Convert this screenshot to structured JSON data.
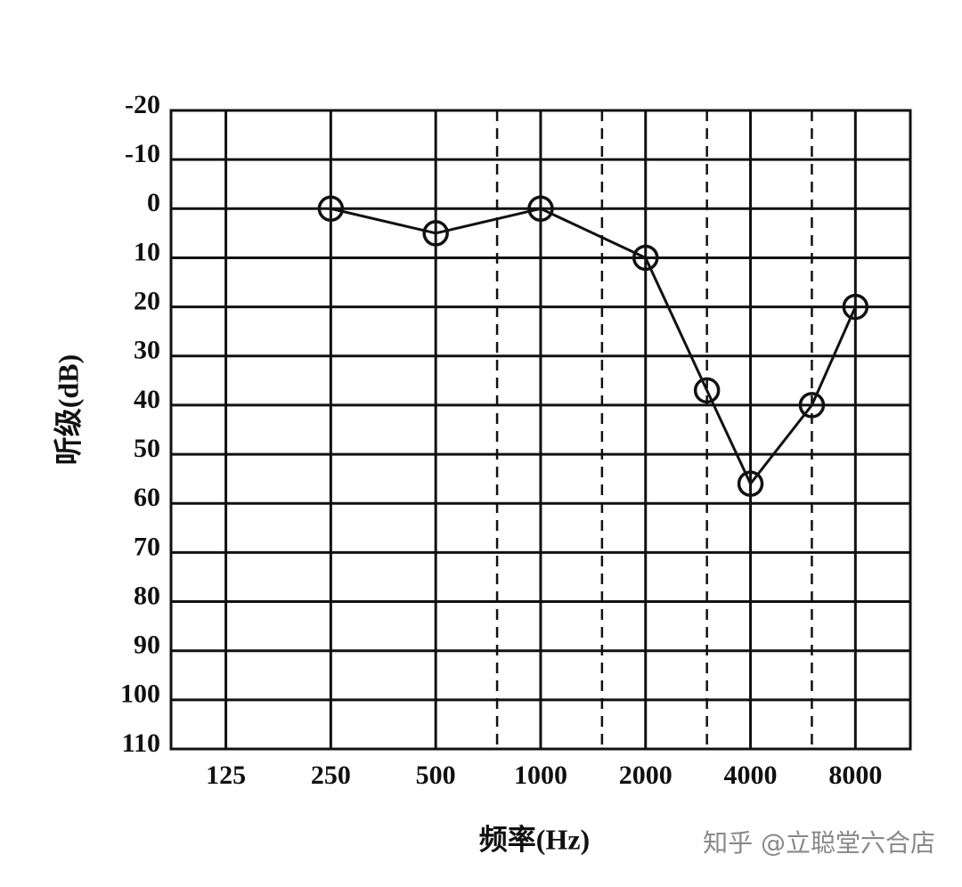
{
  "chart_data": {
    "type": "line",
    "x_label": "频率(Hz)",
    "y_label": "听级(dB)",
    "x": [
      250,
      500,
      1000,
      2000,
      3000,
      4000,
      6000,
      8000
    ],
    "series": [
      {
        "color": "#111111",
        "values": [
          0,
          5,
          0,
          10,
          37,
          56,
          40,
          20
        ]
      }
    ],
    "x_scale": "log",
    "xlim": [
      87,
      11500
    ],
    "xticks": [
      125,
      250,
      500,
      1000,
      2000,
      4000,
      8000
    ],
    "minor_xticks": [
      750,
      1500,
      3000,
      6000
    ],
    "ylim": [
      -20,
      110
    ],
    "y_inverted": true,
    "yticks": [
      -20,
      -10,
      0,
      10,
      20,
      30,
      40,
      50,
      60,
      70,
      80,
      90,
      100,
      110
    ],
    "grid": true,
    "watermark": "知乎 @立聪堂六合店"
  }
}
